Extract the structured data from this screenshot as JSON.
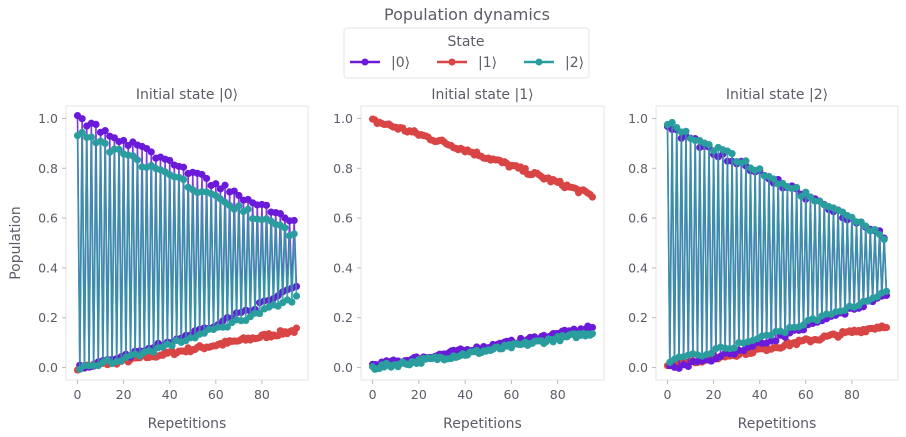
{
  "chart_data": {
    "type": "line",
    "title": "Population dynamics",
    "legend": {
      "title": "State",
      "placement": "top-center",
      "entries": [
        {
          "label": "|0⟩",
          "color": "#6a1ad8"
        },
        {
          "label": "|1⟩",
          "color": "#d94444"
        },
        {
          "label": "|2⟩",
          "color": "#2a9d9f"
        }
      ]
    },
    "ylabel": "Population",
    "xlabel": "Repetitions",
    "xlim": [
      -5,
      100
    ],
    "ylim": [
      -0.05,
      1.05
    ],
    "xticks": [
      0,
      20,
      40,
      60,
      80
    ],
    "yticks": [
      0.0,
      0.2,
      0.4,
      0.6,
      0.8,
      1.0
    ],
    "grid": false,
    "n_points": 96,
    "panels": [
      {
        "title": "Initial state |0⟩",
        "series": [
          {
            "name": "|0⟩",
            "pattern": "alternating",
            "envelope_start": [
              1.0,
              0.0
            ],
            "envelope_end": [
              0.58,
              0.32
            ]
          },
          {
            "name": "|1⟩",
            "pattern": "smooth",
            "start": 0.0,
            "end": 0.15
          },
          {
            "name": "|2⟩",
            "pattern": "alternating",
            "envelope_start": [
              0.94,
              0.0
            ],
            "envelope_end": [
              0.53,
              0.28
            ]
          }
        ]
      },
      {
        "title": "Initial state |1⟩",
        "series": [
          {
            "name": "|0⟩",
            "pattern": "smooth",
            "start": 0.01,
            "end": 0.16
          },
          {
            "name": "|1⟩",
            "pattern": "smooth",
            "start": 0.99,
            "end": 0.69
          },
          {
            "name": "|2⟩",
            "pattern": "smooth",
            "start": 0.0,
            "end": 0.14
          }
        ]
      },
      {
        "title": "Initial state |2⟩",
        "series": [
          {
            "name": "|0⟩",
            "pattern": "alternating",
            "envelope_start": [
              0.96,
              0.0
            ],
            "envelope_end": [
              0.53,
              0.29
            ]
          },
          {
            "name": "|1⟩",
            "pattern": "smooth",
            "start": 0.01,
            "end": 0.17
          },
          {
            "name": "|2⟩",
            "pattern": "alternating",
            "envelope_start": [
              0.98,
              0.03
            ],
            "envelope_end": [
              0.52,
              0.3
            ]
          }
        ]
      }
    ]
  }
}
